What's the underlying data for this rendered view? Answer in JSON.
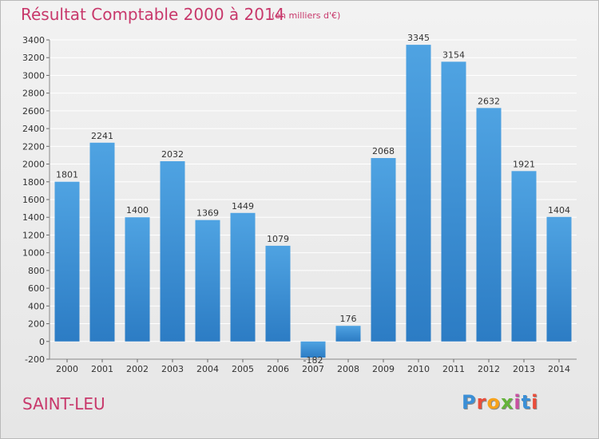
{
  "header": {
    "title": "Résultat Comptable 2000 à 2014",
    "unit": "(en milliers d'€)"
  },
  "footer": {
    "place": "SAINT-LEU",
    "logo": "Proxiti",
    "logo_colors": [
      "#3b8fd6",
      "#e94d3a",
      "#f6a21b",
      "#64b33b",
      "#c94fa2",
      "#3b8fd6",
      "#e94d3a"
    ]
  },
  "colors": {
    "bar": "#4fa3e2",
    "bar_dark": "#2c7cc4",
    "grid": "#ffffff",
    "axis_text": "#333333",
    "title": "#c8386b"
  },
  "chart_data": {
    "type": "bar",
    "categories": [
      "2000",
      "2001",
      "2002",
      "2003",
      "2004",
      "2005",
      "2006",
      "2007",
      "2008",
      "2009",
      "2010",
      "2011",
      "2012",
      "2013",
      "2014"
    ],
    "values": [
      1801,
      2241,
      1400,
      2032,
      1369,
      1449,
      1079,
      -182,
      176,
      2068,
      3345,
      3154,
      2632,
      1921,
      1404
    ],
    "ylim": [
      -200,
      3400
    ],
    "yticks": [
      -200,
      0,
      200,
      400,
      600,
      800,
      1000,
      1200,
      1400,
      1600,
      1800,
      2000,
      2200,
      2400,
      2600,
      2800,
      3000,
      3200,
      3400
    ],
    "grid": true,
    "legend": "none",
    "title": "Résultat Comptable 2000 à 2014",
    "xlabel": "",
    "ylabel": ""
  }
}
